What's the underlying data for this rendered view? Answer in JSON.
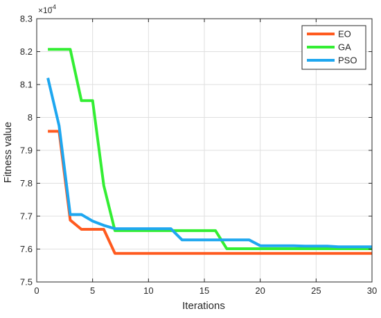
{
  "chart_data": {
    "type": "line",
    "title": "",
    "xlabel": "Iterations",
    "ylabel": "Fitness value",
    "exponent_label": "×10",
    "exponent_power": "-4",
    "xlim": [
      0,
      30
    ],
    "ylim": [
      7.5,
      8.3
    ],
    "xticks": [
      0,
      5,
      10,
      15,
      20,
      25,
      30
    ],
    "yticks": [
      7.5,
      7.6,
      7.7,
      7.8,
      7.9,
      8.0,
      8.1,
      8.2,
      8.3
    ],
    "ytick_labels": [
      "7.5",
      "7.6",
      "7.7",
      "7.8",
      "7.9",
      "8",
      "8.1",
      "8.2",
      "8.3"
    ],
    "grid": true,
    "legend_position": "top-right",
    "series": [
      {
        "name": "EO",
        "color": "#FF5A1F",
        "x": [
          1,
          2,
          3,
          4,
          5,
          6,
          7,
          8,
          9,
          10,
          11,
          12,
          13,
          14,
          15,
          16,
          17,
          18,
          19,
          20,
          21,
          22,
          23,
          24,
          25,
          26,
          27,
          28,
          29,
          30
        ],
        "y": [
          7.958,
          7.958,
          7.688,
          7.66,
          7.66,
          7.66,
          7.587,
          7.587,
          7.587,
          7.587,
          7.587,
          7.587,
          7.587,
          7.587,
          7.587,
          7.587,
          7.587,
          7.587,
          7.587,
          7.587,
          7.587,
          7.587,
          7.587,
          7.587,
          7.587,
          7.587,
          7.587,
          7.587,
          7.587,
          7.587
        ]
      },
      {
        "name": "GA",
        "color": "#33EE33",
        "x": [
          1,
          2,
          3,
          4,
          5,
          6,
          7,
          8,
          9,
          10,
          11,
          12,
          13,
          14,
          15,
          16,
          17,
          18,
          19,
          20,
          21,
          22,
          23,
          24,
          25,
          26,
          27,
          28,
          29,
          30
        ],
        "y": [
          8.207,
          8.207,
          8.207,
          8.051,
          8.051,
          7.793,
          7.656,
          7.656,
          7.656,
          7.656,
          7.656,
          7.656,
          7.656,
          7.656,
          7.656,
          7.656,
          7.601,
          7.601,
          7.601,
          7.601,
          7.601,
          7.601,
          7.601,
          7.601,
          7.601,
          7.601,
          7.601,
          7.601,
          7.601,
          7.601
        ]
      },
      {
        "name": "PSO",
        "color": "#1EA7F0",
        "x": [
          1,
          2,
          3,
          4,
          5,
          6,
          7,
          8,
          9,
          10,
          11,
          12,
          13,
          14,
          15,
          16,
          17,
          18,
          19,
          20,
          21,
          22,
          23,
          24,
          25,
          26,
          27,
          28,
          29,
          30
        ],
        "y": [
          8.12,
          7.975,
          7.705,
          7.705,
          7.685,
          7.672,
          7.662,
          7.662,
          7.662,
          7.662,
          7.662,
          7.662,
          7.628,
          7.628,
          7.628,
          7.628,
          7.628,
          7.628,
          7.628,
          7.61,
          7.61,
          7.61,
          7.61,
          7.609,
          7.609,
          7.609,
          7.607,
          7.607,
          7.607,
          7.607
        ]
      }
    ]
  }
}
